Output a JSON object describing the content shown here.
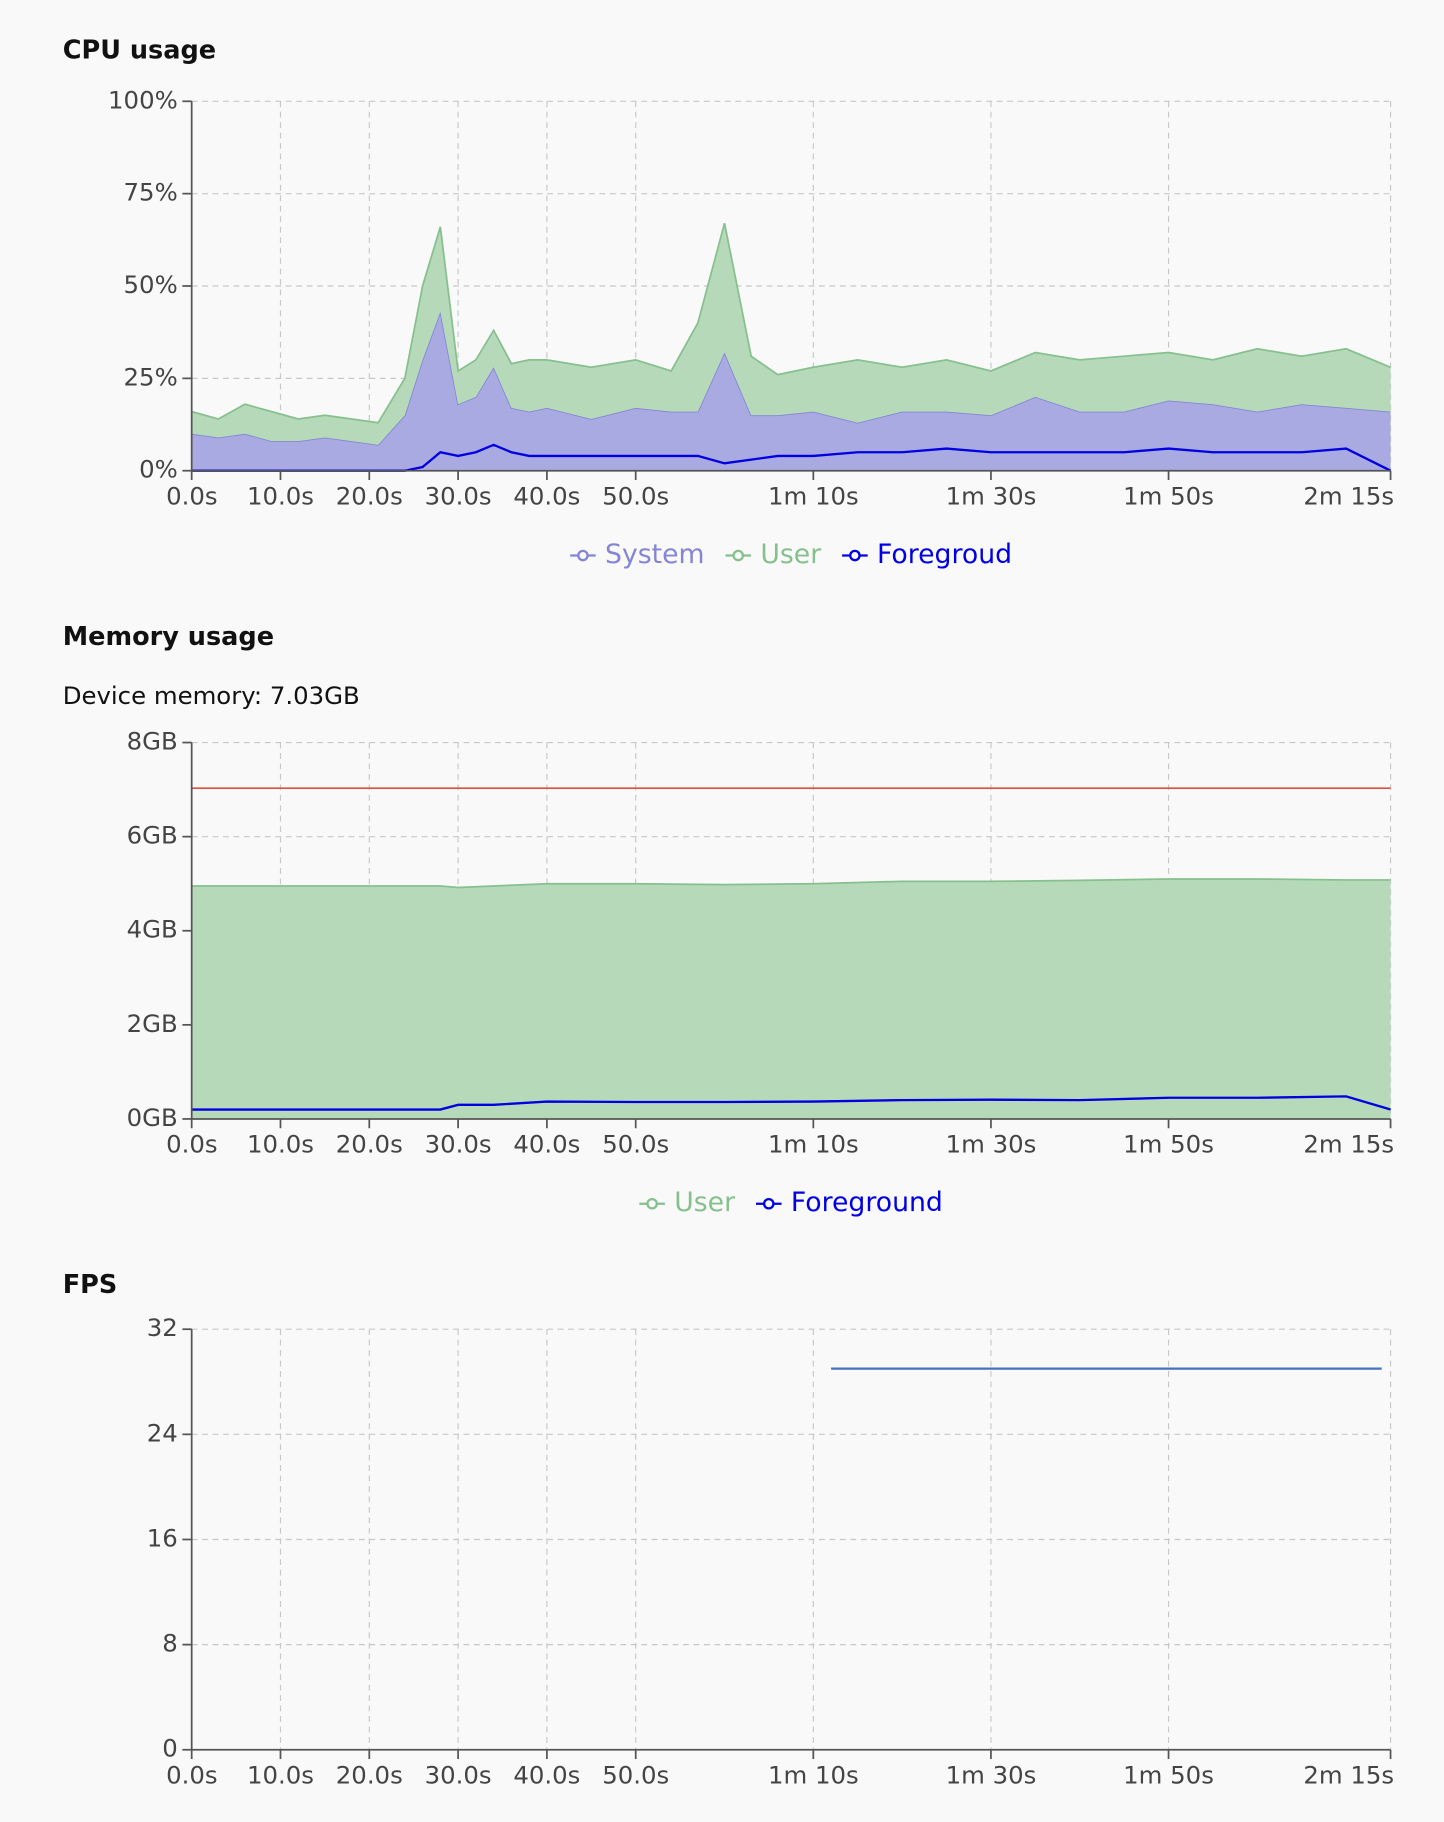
{
  "chart_data": [
    {
      "type": "area",
      "title": "CPU usage",
      "stacked": true,
      "grid": true,
      "legend": "bottom",
      "xlim": [
        0,
        135
      ],
      "ylim": [
        0,
        100
      ],
      "xticks": [
        {
          "value": 0,
          "label": "0.0s"
        },
        {
          "value": 10,
          "label": "10.0s"
        },
        {
          "value": 20,
          "label": "20.0s"
        },
        {
          "value": 30,
          "label": "30.0s"
        },
        {
          "value": 40,
          "label": "40.0s"
        },
        {
          "value": 50,
          "label": "50.0s"
        },
        {
          "value": 70,
          "label": "1m 10s"
        },
        {
          "value": 90,
          "label": "1m 30s"
        },
        {
          "value": 110,
          "label": "1m 50s"
        },
        {
          "value": 135,
          "label": "2m 15s"
        }
      ],
      "yticks": [
        {
          "value": 0,
          "label": "0%"
        },
        {
          "value": 25,
          "label": "25%"
        },
        {
          "value": 50,
          "label": "50%"
        },
        {
          "value": 75,
          "label": "75%"
        },
        {
          "value": 100,
          "label": "100%"
        }
      ],
      "x": [
        0,
        3,
        6,
        9,
        12,
        15,
        18,
        21,
        24,
        26,
        28,
        30,
        32,
        34,
        36,
        38,
        40,
        45,
        50,
        54,
        57,
        60,
        63,
        66,
        70,
        75,
        80,
        85,
        90,
        95,
        100,
        105,
        110,
        115,
        120,
        125,
        130,
        135
      ],
      "series": [
        {
          "name": "System",
          "color": "#8585d6",
          "fill": "#aaaae2",
          "style": "area",
          "values": [
            10,
            9,
            10,
            8,
            8,
            9,
            8,
            7,
            15,
            30,
            43,
            18,
            20,
            28,
            17,
            16,
            17,
            14,
            17,
            16,
            16,
            32,
            15,
            15,
            16,
            13,
            16,
            16,
            15,
            20,
            16,
            16,
            19,
            18,
            16,
            18,
            17,
            16
          ]
        },
        {
          "name": "User",
          "color": "#86c08e",
          "fill": "#b6dab9",
          "style": "area",
          "values": [
            6,
            5,
            8,
            8,
            6,
            6,
            6,
            6,
            10,
            20,
            23,
            9,
            10,
            10,
            12,
            14,
            13,
            14,
            13,
            11,
            24,
            35,
            16,
            11,
            12,
            17,
            12,
            14,
            12,
            12,
            14,
            15,
            13,
            12,
            17,
            13,
            16,
            12
          ]
        },
        {
          "name": "Foregroud",
          "color": "#0000e0",
          "style": "line",
          "values": [
            0,
            0,
            0,
            0,
            0,
            0,
            0,
            0,
            0,
            1,
            5,
            4,
            5,
            7,
            5,
            4,
            4,
            4,
            4,
            4,
            4,
            2,
            3,
            4,
            4,
            5,
            5,
            6,
            5,
            5,
            5,
            5,
            6,
            5,
            5,
            5,
            6,
            0
          ]
        }
      ]
    },
    {
      "type": "area",
      "title": "Memory usage",
      "device_memory": {
        "label": "Device memory: 7.03GB",
        "value": 7.03,
        "color": "#e0503c"
      },
      "stacked": false,
      "grid": true,
      "legend": "bottom",
      "xlim": [
        0,
        135
      ],
      "ylim": [
        0,
        8
      ],
      "xticks": [
        {
          "value": 0,
          "label": "0.0s"
        },
        {
          "value": 10,
          "label": "10.0s"
        },
        {
          "value": 20,
          "label": "20.0s"
        },
        {
          "value": 30,
          "label": "30.0s"
        },
        {
          "value": 40,
          "label": "40.0s"
        },
        {
          "value": 50,
          "label": "50.0s"
        },
        {
          "value": 70,
          "label": "1m 10s"
        },
        {
          "value": 90,
          "label": "1m 30s"
        },
        {
          "value": 110,
          "label": "1m 50s"
        },
        {
          "value": 135,
          "label": "2m 15s"
        }
      ],
      "yticks": [
        {
          "value": 0,
          "label": "0GB"
        },
        {
          "value": 2,
          "label": "2GB"
        },
        {
          "value": 4,
          "label": "4GB"
        },
        {
          "value": 6,
          "label": "6GB"
        },
        {
          "value": 8,
          "label": "8GB"
        }
      ],
      "x": [
        0,
        10,
        20,
        28,
        30,
        34,
        40,
        50,
        60,
        70,
        80,
        90,
        100,
        110,
        120,
        130,
        135
      ],
      "series": [
        {
          "name": "User",
          "color": "#86c08e",
          "fill": "#b6dab9",
          "style": "area",
          "values": [
            4.95,
            4.95,
            4.95,
            4.95,
            4.92,
            4.95,
            5.0,
            5.0,
            4.98,
            5.0,
            5.05,
            5.05,
            5.07,
            5.1,
            5.1,
            5.08,
            5.08
          ]
        },
        {
          "name": "Foreground",
          "color": "#0000e0",
          "style": "line",
          "values": [
            0.2,
            0.2,
            0.2,
            0.2,
            0.3,
            0.3,
            0.37,
            0.36,
            0.36,
            0.37,
            0.4,
            0.41,
            0.4,
            0.45,
            0.45,
            0.48,
            0.2
          ]
        }
      ]
    },
    {
      "type": "line",
      "title": "FPS",
      "grid": true,
      "xlim": [
        0,
        135
      ],
      "ylim": [
        0,
        32
      ],
      "xticks": [
        {
          "value": 0,
          "label": "0.0s"
        },
        {
          "value": 10,
          "label": "10.0s"
        },
        {
          "value": 20,
          "label": "20.0s"
        },
        {
          "value": 30,
          "label": "30.0s"
        },
        {
          "value": 40,
          "label": "40.0s"
        },
        {
          "value": 50,
          "label": "50.0s"
        },
        {
          "value": 70,
          "label": "1m 10s"
        },
        {
          "value": 90,
          "label": "1m 30s"
        },
        {
          "value": 110,
          "label": "1m 50s"
        },
        {
          "value": 135,
          "label": "2m 15s"
        }
      ],
      "yticks": [
        0,
        8,
        16,
        24,
        32
      ],
      "x": [
        72,
        134
      ],
      "series": [
        {
          "color": "#4472c4",
          "style": "line",
          "values": [
            29,
            29
          ]
        }
      ]
    }
  ]
}
